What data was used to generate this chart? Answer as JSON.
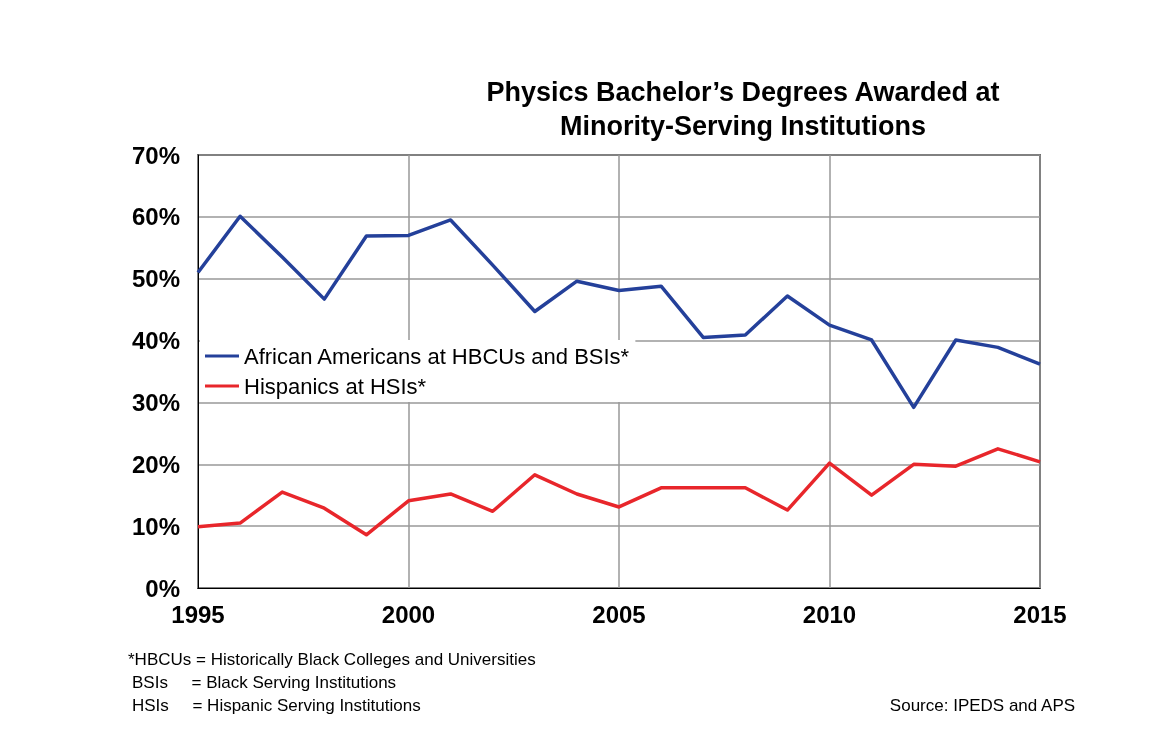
{
  "chart_data": {
    "type": "line",
    "title": "Physics Bachelor’s Degrees Awarded at\nMinority-Serving Institutions",
    "x": [
      1995,
      1996,
      1997,
      1998,
      1999,
      2000,
      2001,
      2002,
      2003,
      2004,
      2005,
      2006,
      2007,
      2008,
      2009,
      2010,
      2011,
      2012,
      2013,
      2014,
      2015
    ],
    "series": [
      {
        "name": "African Americans at HBCUs and BSIs*",
        "color": "#24409a",
        "values": [
          51.0,
          60.1,
          53.5,
          46.7,
          56.9,
          57.0,
          59.5,
          52.2,
          44.7,
          49.6,
          48.1,
          48.8,
          40.5,
          40.9,
          47.2,
          42.5,
          40.1,
          29.2,
          40.1,
          38.9,
          36.2
        ]
      },
      {
        "name": "Hispanics at HSIs*",
        "color": "#e8262b",
        "values": [
          9.9,
          10.5,
          15.5,
          12.9,
          8.6,
          14.1,
          15.2,
          12.4,
          18.3,
          15.2,
          13.1,
          16.2,
          16.2,
          16.2,
          12.6,
          20.2,
          15.0,
          20.0,
          19.7,
          22.5,
          20.4
        ]
      }
    ],
    "xlim": [
      1995,
      2015
    ],
    "xticks": [
      1995,
      2000,
      2005,
      2010,
      2015
    ],
    "ylim": [
      0,
      70
    ],
    "yticks": [
      {
        "value": 0,
        "label": "0%"
      },
      {
        "value": 10,
        "label": "10%"
      },
      {
        "value": 20,
        "label": "20%"
      },
      {
        "value": 30,
        "label": "30%"
      },
      {
        "value": 40,
        "label": "40%"
      },
      {
        "value": 50,
        "label": "50%"
      },
      {
        "value": 60,
        "label": "60%"
      },
      {
        "value": 70,
        "label": "70%"
      }
    ],
    "grid": true,
    "legend": "left",
    "marker": "none",
    "line_style": "solid",
    "annotations": [
      "*HBCUs = Historically Black Colleges and Universities",
      "BSIs     = Black Serving Institutions",
      "HSIs     = Hispanic Serving Institutions",
      "Source: IPEDS and APS"
    ]
  }
}
